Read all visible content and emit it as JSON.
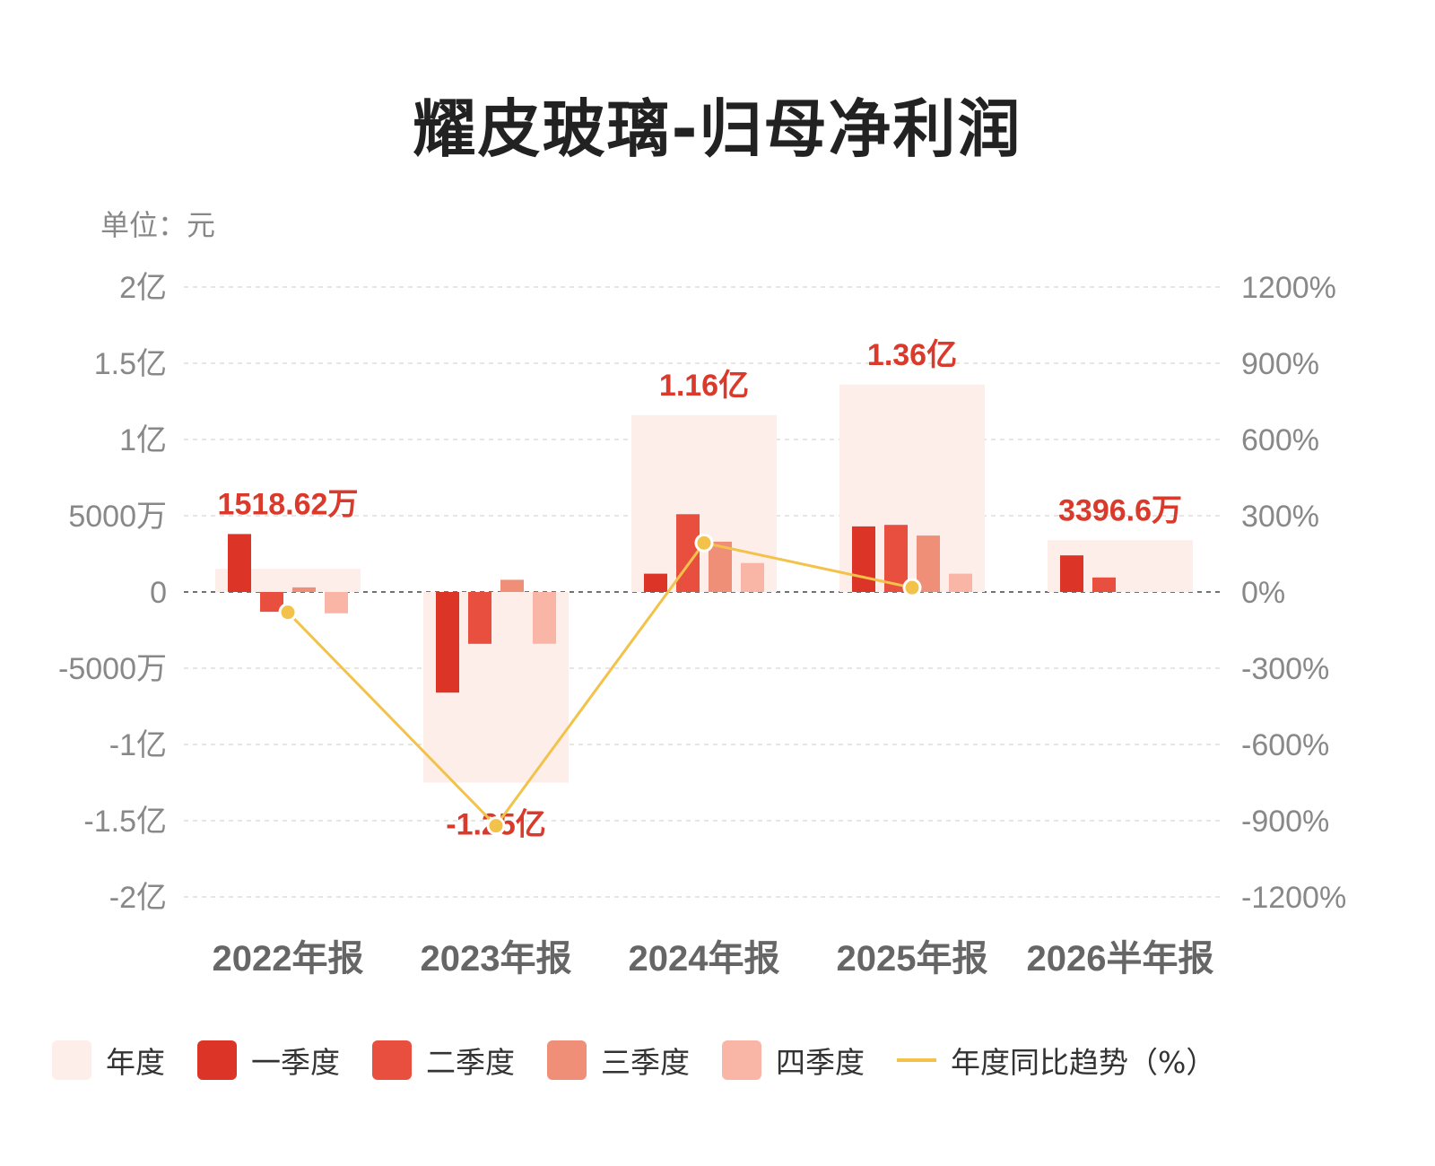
{
  "chart_data": {
    "type": "bar",
    "title": "耀皮玻璃-归母净利润",
    "unit_label": "单位：元",
    "categories": [
      "2022年报",
      "2023年报",
      "2024年报",
      "2025年报",
      "2026半年报"
    ],
    "annual": {
      "name": "年度",
      "values": [
        15186200,
        -125000000,
        116000000,
        136000000,
        33966000
      ],
      "labels": [
        "1518.62万",
        "-1.25亿",
        "1.16亿",
        "1.36亿",
        "3396.6万"
      ]
    },
    "series": [
      {
        "name": "一季度",
        "color": "#dc3527",
        "values": [
          38000000,
          -66000000,
          12000000,
          43000000,
          24000000
        ]
      },
      {
        "name": "二季度",
        "color": "#e84f3f",
        "values": [
          -13000000,
          -34000000,
          51000000,
          44000000,
          9500000
        ]
      },
      {
        "name": "三季度",
        "color": "#ef8f78",
        "values": [
          3000000,
          8000000,
          33000000,
          37000000,
          null
        ]
      },
      {
        "name": "四季度",
        "color": "#f9b6a6",
        "values": [
          -14000000,
          -34000000,
          19000000,
          12000000,
          null
        ]
      }
    ],
    "yoy": {
      "name": "年度同比趋势（%）",
      "color": "#f2c24a",
      "values": [
        -80,
        -920,
        193,
        17,
        null
      ]
    },
    "y_left": {
      "min": -200000000,
      "max": 200000000,
      "ticks": [
        200000000,
        150000000,
        100000000,
        50000000,
        0,
        -50000000,
        -100000000,
        -150000000,
        -200000000
      ],
      "tick_labels": [
        "2亿",
        "1.5亿",
        "1亿",
        "5000万",
        "0",
        "-5000万",
        "-1亿",
        "-1.5亿",
        "-2亿"
      ]
    },
    "y_right": {
      "min": -1200,
      "max": 1200,
      "tick_labels": [
        "1200%",
        "900%",
        "600%",
        "300%",
        "0%",
        "-300%",
        "-600%",
        "-900%",
        "-1200%"
      ]
    },
    "colors": {
      "annual": "#fdeeea",
      "label": "#d93a2b",
      "grid": "#d8d8d8",
      "tick": "#888888",
      "category": "#666666"
    },
    "grid": true,
    "legend_position": "bottom"
  },
  "legend": {
    "annual": "年度",
    "q1": "一季度",
    "q2": "二季度",
    "q3": "三季度",
    "q4": "四季度",
    "yoy": "年度同比趋势（%）"
  }
}
